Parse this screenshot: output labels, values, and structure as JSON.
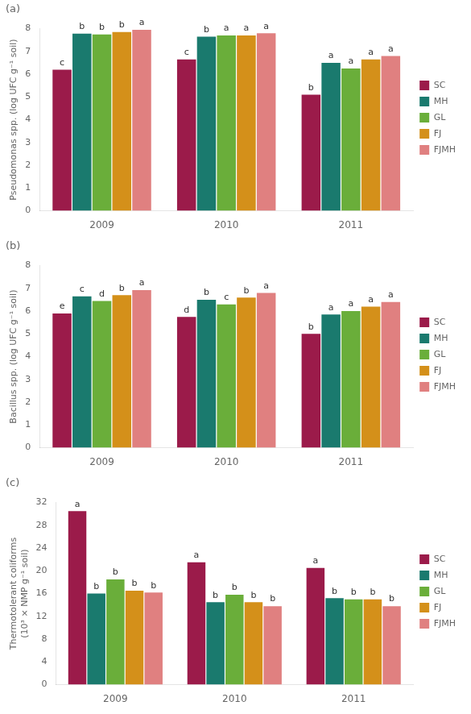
{
  "chart_data": [
    {
      "type": "bar",
      "title": "(a)",
      "ylabel": "Pseudomonas spp. (log UFC g⁻¹ soil)",
      "categories": [
        "2009",
        "2010",
        "2011"
      ],
      "series": [
        {
          "name": "SC",
          "color": "#9B1B4A",
          "values": [
            6.2,
            6.65,
            5.1
          ],
          "letters": [
            "c",
            "c",
            "b"
          ]
        },
        {
          "name": "MH",
          "color": "#1A7A6E",
          "values": [
            7.78,
            7.65,
            6.5
          ],
          "letters": [
            "b",
            "b",
            "a"
          ]
        },
        {
          "name": "GL",
          "color": "#6AAE3A",
          "values": [
            7.75,
            7.7,
            6.25
          ],
          "letters": [
            "b",
            "a",
            "a"
          ]
        },
        {
          "name": "FJ",
          "color": "#D4901A",
          "values": [
            7.85,
            7.7,
            6.65
          ],
          "letters": [
            "b",
            "a",
            "a"
          ]
        },
        {
          "name": "FJMH",
          "color": "#E08080",
          "values": [
            7.95,
            7.8,
            6.8
          ],
          "letters": [
            "a",
            "a",
            "a"
          ]
        }
      ],
      "ylim": [
        0,
        8
      ],
      "yticks": [
        0,
        1,
        2,
        3,
        4,
        5,
        6,
        7,
        8
      ],
      "grid": false,
      "legend": "right"
    },
    {
      "type": "bar",
      "title": "(b)",
      "ylabel": "Bacillus spp. (log UFC g⁻¹ soil)",
      "categories": [
        "2009",
        "2010",
        "2011"
      ],
      "series": [
        {
          "name": "SC",
          "color": "#9B1B4A",
          "values": [
            5.9,
            5.75,
            5.0
          ],
          "letters": [
            "e",
            "d",
            "b"
          ]
        },
        {
          "name": "MH",
          "color": "#1A7A6E",
          "values": [
            6.65,
            6.5,
            5.85
          ],
          "letters": [
            "c",
            "b",
            "a"
          ]
        },
        {
          "name": "GL",
          "color": "#6AAE3A",
          "values": [
            6.45,
            6.3,
            6.0
          ],
          "letters": [
            "d",
            "c",
            "a"
          ]
        },
        {
          "name": "FJ",
          "color": "#D4901A",
          "values": [
            6.7,
            6.6,
            6.2
          ],
          "letters": [
            "b",
            "b",
            "a"
          ]
        },
        {
          "name": "FJMH",
          "color": "#E08080",
          "values": [
            6.92,
            6.8,
            6.4
          ],
          "letters": [
            "a",
            "a",
            "a"
          ]
        }
      ],
      "ylim": [
        0,
        8
      ],
      "yticks": [
        0,
        1,
        2,
        3,
        4,
        5,
        6,
        7,
        8
      ],
      "grid": false,
      "legend": "right"
    },
    {
      "type": "bar",
      "title": "(c)",
      "ylabel": "Thermotolerant coliforms\n(10³ × NMP g⁻¹ soil)",
      "categories": [
        "2009",
        "2010",
        "2011"
      ],
      "series": [
        {
          "name": "SC",
          "color": "#9B1B4A",
          "values": [
            30.5,
            21.5,
            20.5
          ],
          "letters": [
            "a",
            "a",
            "a"
          ]
        },
        {
          "name": "MH",
          "color": "#1A7A6E",
          "values": [
            16.0,
            14.5,
            15.2
          ],
          "letters": [
            "b",
            "b",
            "b"
          ]
        },
        {
          "name": "GL",
          "color": "#6AAE3A",
          "values": [
            18.5,
            15.8,
            15.0
          ],
          "letters": [
            "b",
            "b",
            "b"
          ]
        },
        {
          "name": "FJ",
          "color": "#D4901A",
          "values": [
            16.5,
            14.5,
            15.0
          ],
          "letters": [
            "b",
            "b",
            "b"
          ]
        },
        {
          "name": "FJMH",
          "color": "#E08080",
          "values": [
            16.2,
            13.8,
            13.8
          ],
          "letters": [
            "b",
            "b",
            "b"
          ]
        }
      ],
      "ylim": [
        0,
        32
      ],
      "yticks": [
        0,
        4,
        8,
        12,
        16,
        20,
        24,
        28,
        32
      ],
      "grid": false,
      "legend": "right"
    }
  ]
}
